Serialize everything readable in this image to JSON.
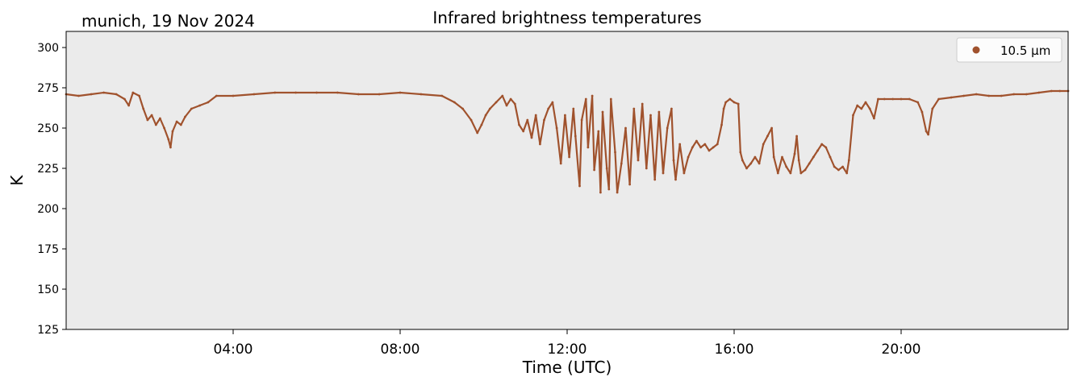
{
  "header": {
    "location_date": "munich, 19 Nov 2024"
  },
  "chart_data": {
    "type": "scatter",
    "title": "Infrared brightness temperatures",
    "xlabel": "Time (UTC)",
    "ylabel": "K",
    "xlim": [
      0,
      24
    ],
    "ylim": [
      125,
      310
    ],
    "xticks": [
      {
        "value": 4,
        "label": "04:00"
      },
      {
        "value": 8,
        "label": "08:00"
      },
      {
        "value": 12,
        "label": "12:00"
      },
      {
        "value": 16,
        "label": "16:00"
      },
      {
        "value": 20,
        "label": "20:00"
      }
    ],
    "yticks": [
      {
        "value": 125,
        "label": "125"
      },
      {
        "value": 150,
        "label": "150"
      },
      {
        "value": 175,
        "label": "175"
      },
      {
        "value": 200,
        "label": "200"
      },
      {
        "value": 225,
        "label": "225"
      },
      {
        "value": 250,
        "label": "250"
      },
      {
        "value": 275,
        "label": "275"
      },
      {
        "value": 300,
        "label": "300"
      }
    ],
    "legend_position": "top-right",
    "background_color": "#ebebeb",
    "series": [
      {
        "name": "10.5 µm",
        "color": "#a0522d",
        "points": [
          [
            0.0,
            271
          ],
          [
            0.3,
            270
          ],
          [
            0.6,
            271
          ],
          [
            0.9,
            272
          ],
          [
            1.2,
            271
          ],
          [
            1.4,
            268
          ],
          [
            1.5,
            264
          ],
          [
            1.6,
            272
          ],
          [
            1.75,
            270
          ],
          [
            1.85,
            262
          ],
          [
            1.95,
            255
          ],
          [
            2.05,
            258
          ],
          [
            2.15,
            252
          ],
          [
            2.25,
            256
          ],
          [
            2.35,
            250
          ],
          [
            2.45,
            243
          ],
          [
            2.5,
            238
          ],
          [
            2.55,
            248
          ],
          [
            2.65,
            254
          ],
          [
            2.75,
            252
          ],
          [
            2.85,
            257
          ],
          [
            3.0,
            262
          ],
          [
            3.2,
            264
          ],
          [
            3.4,
            266
          ],
          [
            3.6,
            270
          ],
          [
            4.0,
            270
          ],
          [
            4.5,
            271
          ],
          [
            5.0,
            272
          ],
          [
            5.5,
            272
          ],
          [
            6.0,
            272
          ],
          [
            6.5,
            272
          ],
          [
            7.0,
            271
          ],
          [
            7.5,
            271
          ],
          [
            8.0,
            272
          ],
          [
            8.5,
            271
          ],
          [
            9.0,
            270
          ],
          [
            9.3,
            266
          ],
          [
            9.5,
            262
          ],
          [
            9.7,
            255
          ],
          [
            9.85,
            247
          ],
          [
            9.95,
            252
          ],
          [
            10.05,
            258
          ],
          [
            10.15,
            262
          ],
          [
            10.3,
            266
          ],
          [
            10.45,
            270
          ],
          [
            10.55,
            264
          ],
          [
            10.65,
            268
          ],
          [
            10.75,
            265
          ],
          [
            10.85,
            252
          ],
          [
            10.95,
            248
          ],
          [
            11.05,
            255
          ],
          [
            11.15,
            244
          ],
          [
            11.25,
            258
          ],
          [
            11.35,
            240
          ],
          [
            11.45,
            255
          ],
          [
            11.55,
            262
          ],
          [
            11.65,
            266
          ],
          [
            11.75,
            250
          ],
          [
            11.85,
            228
          ],
          [
            11.95,
            258
          ],
          [
            12.05,
            232
          ],
          [
            12.15,
            262
          ],
          [
            12.2,
            245
          ],
          [
            12.3,
            214
          ],
          [
            12.35,
            255
          ],
          [
            12.45,
            268
          ],
          [
            12.5,
            238
          ],
          [
            12.6,
            270
          ],
          [
            12.65,
            224
          ],
          [
            12.75,
            248
          ],
          [
            12.8,
            210
          ],
          [
            12.85,
            260
          ],
          [
            12.95,
            225
          ],
          [
            13.0,
            212
          ],
          [
            13.05,
            268
          ],
          [
            13.15,
            235
          ],
          [
            13.2,
            210
          ],
          [
            13.3,
            228
          ],
          [
            13.4,
            250
          ],
          [
            13.5,
            215
          ],
          [
            13.6,
            262
          ],
          [
            13.7,
            230
          ],
          [
            13.8,
            265
          ],
          [
            13.9,
            225
          ],
          [
            14.0,
            258
          ],
          [
            14.1,
            218
          ],
          [
            14.2,
            260
          ],
          [
            14.3,
            222
          ],
          [
            14.4,
            250
          ],
          [
            14.5,
            262
          ],
          [
            14.55,
            230
          ],
          [
            14.6,
            218
          ],
          [
            14.7,
            240
          ],
          [
            14.8,
            222
          ],
          [
            14.9,
            232
          ],
          [
            15.0,
            238
          ],
          [
            15.1,
            242
          ],
          [
            15.2,
            238
          ],
          [
            15.3,
            240
          ],
          [
            15.4,
            236
          ],
          [
            15.5,
            238
          ],
          [
            15.6,
            240
          ],
          [
            15.7,
            252
          ],
          [
            15.75,
            262
          ],
          [
            15.8,
            266
          ],
          [
            15.9,
            268
          ],
          [
            16.0,
            266
          ],
          [
            16.1,
            265
          ],
          [
            16.15,
            235
          ],
          [
            16.2,
            230
          ],
          [
            16.3,
            225
          ],
          [
            16.4,
            228
          ],
          [
            16.5,
            232
          ],
          [
            16.6,
            228
          ],
          [
            16.7,
            240
          ],
          [
            16.8,
            245
          ],
          [
            16.9,
            250
          ],
          [
            16.95,
            232
          ],
          [
            17.05,
            222
          ],
          [
            17.15,
            232
          ],
          [
            17.25,
            226
          ],
          [
            17.35,
            222
          ],
          [
            17.45,
            234
          ],
          [
            17.5,
            245
          ],
          [
            17.55,
            230
          ],
          [
            17.6,
            222
          ],
          [
            17.7,
            224
          ],
          [
            17.8,
            228
          ],
          [
            17.9,
            232
          ],
          [
            18.0,
            236
          ],
          [
            18.1,
            240
          ],
          [
            18.2,
            238
          ],
          [
            18.3,
            232
          ],
          [
            18.4,
            226
          ],
          [
            18.5,
            224
          ],
          [
            18.6,
            226
          ],
          [
            18.7,
            222
          ],
          [
            18.75,
            230
          ],
          [
            18.85,
            258
          ],
          [
            18.95,
            264
          ],
          [
            19.05,
            262
          ],
          [
            19.15,
            266
          ],
          [
            19.25,
            262
          ],
          [
            19.35,
            256
          ],
          [
            19.45,
            268
          ],
          [
            19.6,
            268
          ],
          [
            19.8,
            268
          ],
          [
            20.0,
            268
          ],
          [
            20.2,
            268
          ],
          [
            20.4,
            266
          ],
          [
            20.5,
            260
          ],
          [
            20.6,
            248
          ],
          [
            20.65,
            246
          ],
          [
            20.75,
            262
          ],
          [
            20.9,
            268
          ],
          [
            21.2,
            269
          ],
          [
            21.5,
            270
          ],
          [
            21.8,
            271
          ],
          [
            22.1,
            270
          ],
          [
            22.4,
            270
          ],
          [
            22.7,
            271
          ],
          [
            23.0,
            271
          ],
          [
            23.3,
            272
          ],
          [
            23.6,
            273
          ],
          [
            23.8,
            273
          ],
          [
            24.0,
            273
          ]
        ]
      }
    ]
  }
}
